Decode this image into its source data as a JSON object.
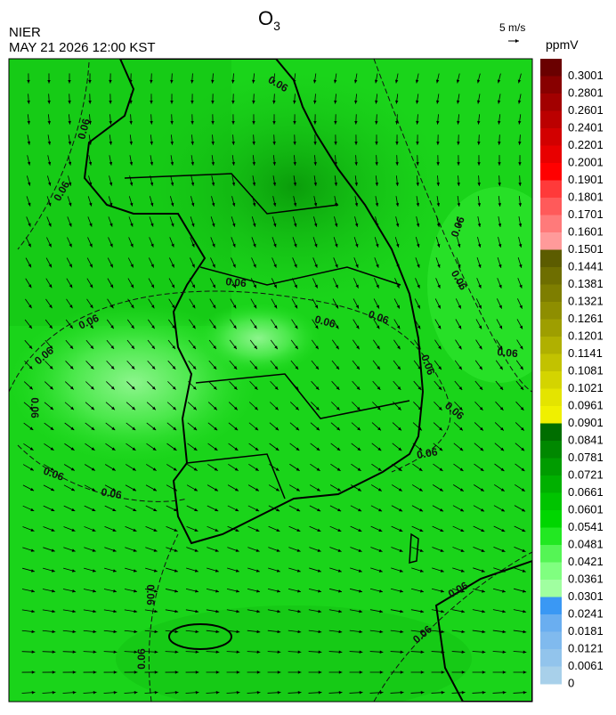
{
  "header": {
    "title": "O",
    "title_subscript": "3",
    "agency": "NIER",
    "timestamp": "MAY 21 2026 12:00 KST",
    "wind_scale": "5 m/s",
    "unit": "ppmV"
  },
  "colorbar": {
    "levels": [
      0.3001,
      0.2801,
      0.2601,
      0.2401,
      0.2201,
      0.2001,
      0.1901,
      0.1801,
      0.1701,
      0.1601,
      0.1501,
      0.1441,
      0.1381,
      0.1321,
      0.1261,
      0.1201,
      0.1141,
      0.1081,
      0.1021,
      0.0961,
      0.0901,
      0.0841,
      0.0781,
      0.0721,
      0.0661,
      0.0601,
      0.0541,
      0.0481,
      0.0421,
      0.0361,
      0.0301,
      0.0241,
      0.0181,
      0.0121,
      0.0061,
      0
    ],
    "colors": [
      "#6a0000",
      "#880000",
      "#a20000",
      "#bb0000",
      "#d20000",
      "#e80000",
      "#ff0000",
      "#ff3a3a",
      "#ff5a5a",
      "#ff7a7a",
      "#ff9a9a",
      "#5c5c00",
      "#6e6e00",
      "#7e7e00",
      "#8e8e00",
      "#9e9e00",
      "#b0b000",
      "#c2c200",
      "#d4d400",
      "#e4e400",
      "#f0f000",
      "#006e00",
      "#008800",
      "#009c00",
      "#00b000",
      "#00c400",
      "#00d600",
      "#22e822",
      "#55f555",
      "#80ff80",
      "#a0ffa0",
      "#3a98f4",
      "#6aaef0",
      "#80baee",
      "#92c4ec",
      "#a8d0ea"
    ]
  },
  "map": {
    "contour_labels": [
      "0.06",
      "0.06",
      "0.06",
      "0.06",
      "0.06",
      "0.06",
      "0.06",
      "0.06",
      "0.06",
      "0.06",
      "0.06",
      "0.06",
      "0.06",
      "0.06",
      "0.06",
      "0.06",
      "0.06",
      "0.06",
      "0.06",
      "0.06",
      "0.06"
    ]
  }
}
